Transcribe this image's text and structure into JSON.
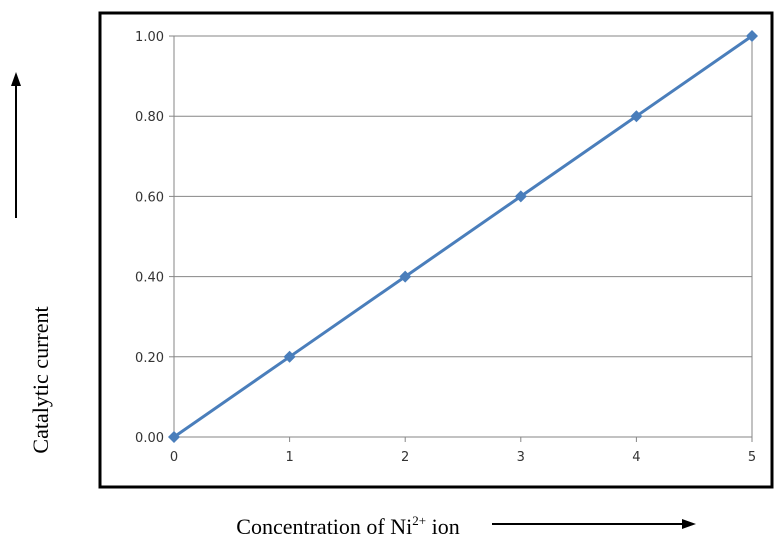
{
  "chart_data": {
    "type": "line",
    "title": "",
    "xlabel": "Concentration of Ni",
    "xlabel_superscript": "2+",
    "xlabel_suffix": " ion",
    "ylabel": "Catalytic current",
    "xlim": [
      0,
      5
    ],
    "ylim": [
      0,
      1
    ],
    "grid": "horizontal",
    "legend": "none",
    "x_ticks": [
      "0",
      "1",
      "2",
      "3",
      "4",
      "5"
    ],
    "y_ticks": [
      "0.00",
      "0.20",
      "0.40",
      "0.60",
      "0.80",
      "1.00"
    ],
    "series": [
      {
        "x": [
          0,
          1,
          2,
          3,
          4,
          5
        ],
        "y": [
          0.0,
          0.2,
          0.4,
          0.6,
          0.8,
          1.0
        ],
        "color": "#4a7ebb",
        "marker": "diamond"
      }
    ]
  }
}
